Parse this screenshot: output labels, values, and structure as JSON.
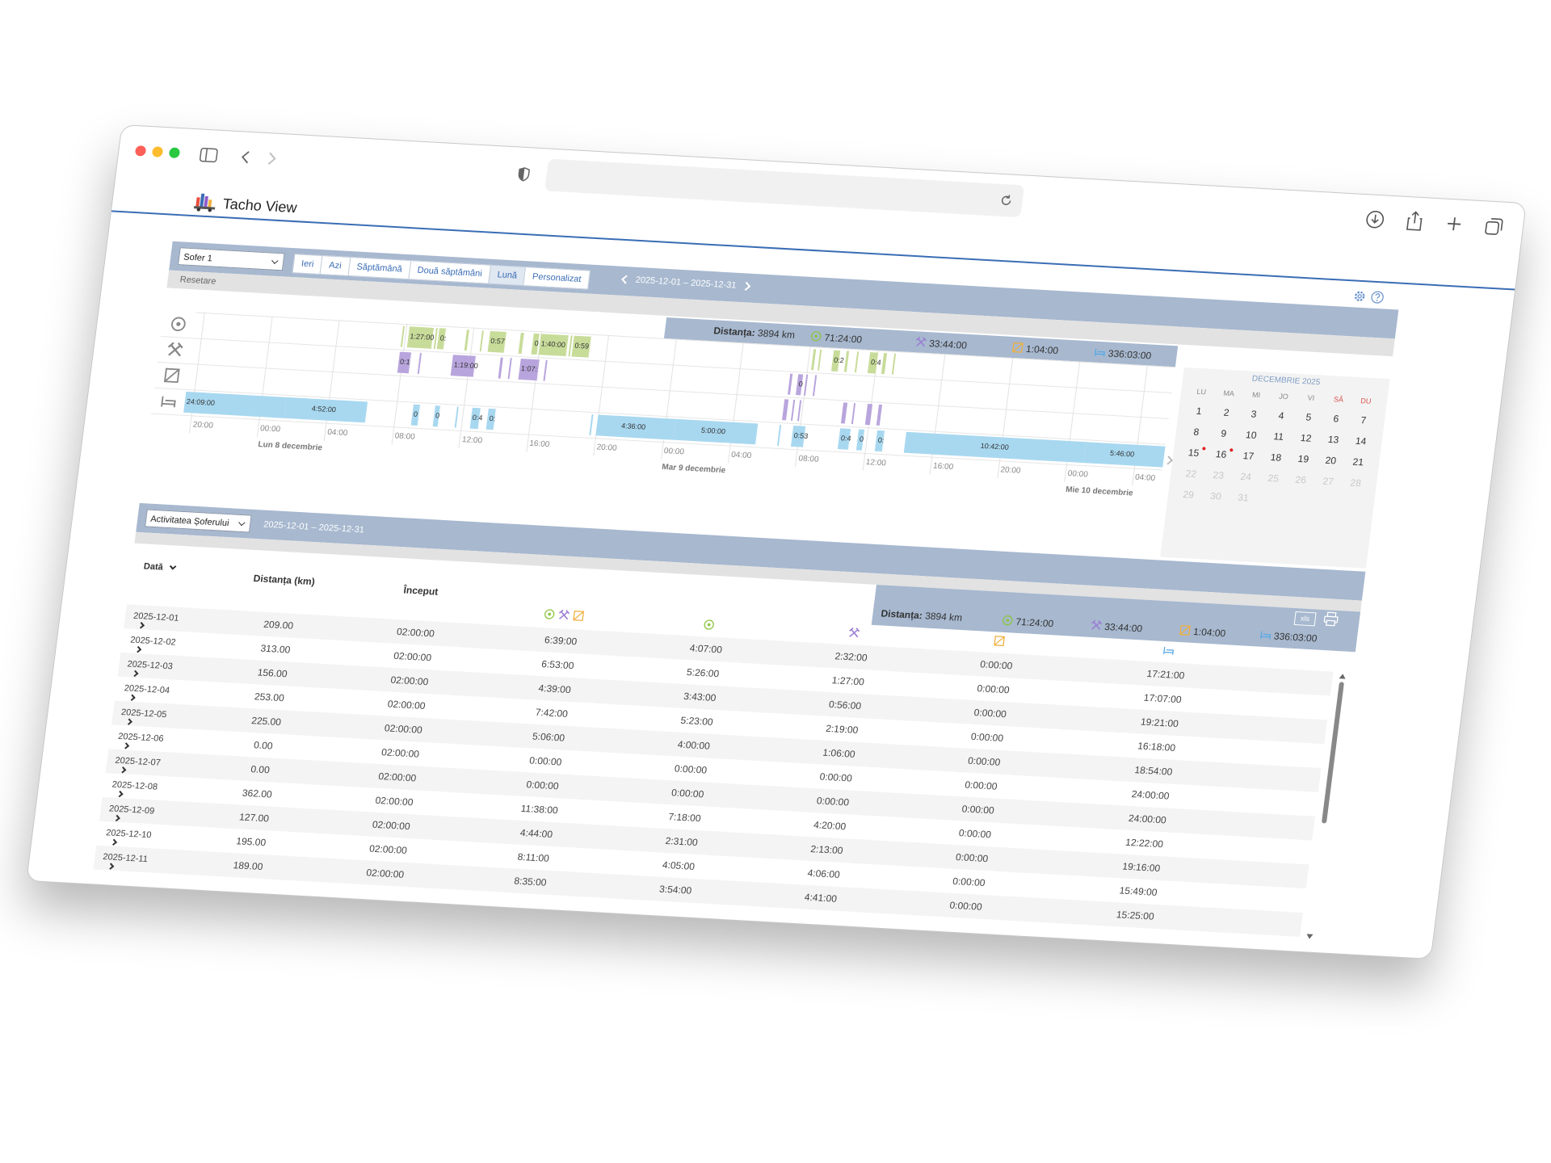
{
  "app": {
    "title": "Tacho View"
  },
  "toolbar": {
    "driver": "Sofer 1",
    "periods": [
      "Ieri",
      "Azi",
      "Săptămână",
      "Două săptămâni",
      "Lună",
      "Personalizat"
    ],
    "range": "2025-12-01 – 2025-12-31",
    "reset": "Resetare"
  },
  "summary": {
    "distance_label": "Distanța:",
    "distance": "3894 km",
    "driving": "71:24:00",
    "work": "33:44:00",
    "availability": "1:04:00",
    "rest": "336:03:00"
  },
  "timeline": {
    "driving": [
      "1:27:00",
      "0:",
      "0:57",
      "0",
      "1:40:00",
      "0:59",
      "0:2",
      "0:4"
    ],
    "work": [
      "0:1",
      "1:19:00",
      "1:07:",
      "0"
    ],
    "rest": [
      "24:09:00",
      "4:52:00",
      "0",
      "0",
      "0:4",
      "0:",
      "4:36:00",
      "5:00:00",
      "0:53",
      "0:4",
      "0",
      "0:",
      "10:42:00",
      "5:46:00"
    ],
    "axis": [
      "20:00",
      "00:00",
      "04:00",
      "08:00",
      "12:00",
      "16:00",
      "20:00",
      "00:00",
      "04:00",
      "08:00",
      "12:00",
      "16:00",
      "20:00",
      "00:00",
      "04:00"
    ],
    "days": [
      "Lun 8 decembrie",
      "Mar 9 decembrie",
      "Mie 10 decembrie"
    ]
  },
  "calendar": {
    "title": "DECEMBRIE 2025",
    "weekdays": [
      "LU",
      "MA",
      "MI",
      "JO",
      "VI",
      "SÂ",
      "DU"
    ],
    "days": [
      1,
      2,
      3,
      4,
      5,
      6,
      7,
      8,
      9,
      10,
      11,
      12,
      13,
      14,
      15,
      16,
      17,
      18,
      19,
      20,
      21,
      22,
      23,
      24,
      25,
      26,
      27,
      28,
      29,
      30,
      31
    ]
  },
  "report": {
    "view": "Activitatea Șoferului",
    "export": "xls",
    "columns": [
      "Dată",
      "Distanța (km)",
      "Început"
    ],
    "rows": [
      [
        "2025-12-01",
        "209.00",
        "02:00:00",
        "6:39:00",
        "4:07:00",
        "2:32:00",
        "0:00:00",
        "17:21:00"
      ],
      [
        "2025-12-02",
        "313.00",
        "02:00:00",
        "6:53:00",
        "5:26:00",
        "1:27:00",
        "0:00:00",
        "17:07:00"
      ],
      [
        "2025-12-03",
        "156.00",
        "02:00:00",
        "4:39:00",
        "3:43:00",
        "0:56:00",
        "0:00:00",
        "19:21:00"
      ],
      [
        "2025-12-04",
        "253.00",
        "02:00:00",
        "7:42:00",
        "5:23:00",
        "2:19:00",
        "0:00:00",
        "16:18:00"
      ],
      [
        "2025-12-05",
        "225.00",
        "02:00:00",
        "5:06:00",
        "4:00:00",
        "1:06:00",
        "0:00:00",
        "18:54:00"
      ],
      [
        "2025-12-06",
        "0.00",
        "02:00:00",
        "0:00:00",
        "0:00:00",
        "0:00:00",
        "0:00:00",
        "24:00:00"
      ],
      [
        "2025-12-07",
        "0.00",
        "02:00:00",
        "0:00:00",
        "0:00:00",
        "0:00:00",
        "0:00:00",
        "24:00:00"
      ],
      [
        "2025-12-08",
        "362.00",
        "02:00:00",
        "11:38:00",
        "7:18:00",
        "4:20:00",
        "0:00:00",
        "12:22:00"
      ],
      [
        "2025-12-09",
        "127.00",
        "02:00:00",
        "4:44:00",
        "2:31:00",
        "2:13:00",
        "0:00:00",
        "19:16:00"
      ],
      [
        "2025-12-10",
        "195.00",
        "02:00:00",
        "8:11:00",
        "4:05:00",
        "4:06:00",
        "0:00:00",
        "15:49:00"
      ],
      [
        "2025-12-11",
        "189.00",
        "02:00:00",
        "8:35:00",
        "3:54:00",
        "4:41:00",
        "0:00:00",
        "15:25:00"
      ]
    ]
  }
}
